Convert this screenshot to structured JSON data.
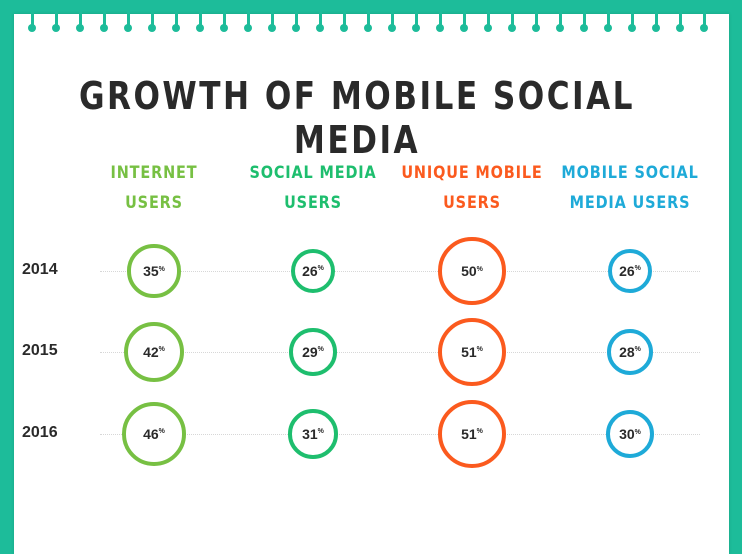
{
  "title": "GROWTH OF MOBILE SOCIAL MEDIA",
  "chart_data": {
    "type": "table",
    "title": "GROWTH OF MOBILE SOCIAL MEDIA",
    "rows": [
      "2014",
      "2015",
      "2016"
    ],
    "unit": "%",
    "series": [
      {
        "name_lines": [
          "INTERNET",
          "USERS"
        ],
        "color": "#77c043",
        "values": [
          35,
          42,
          46
        ]
      },
      {
        "name_lines": [
          "SOCIAL MEDIA",
          "USERS"
        ],
        "color": "#1ebe6e",
        "values": [
          26,
          29,
          31
        ]
      },
      {
        "name_lines": [
          "UNIQUE MOBILE",
          "USERS"
        ],
        "color": "#fb5a1e",
        "values": [
          50,
          51,
          51
        ]
      },
      {
        "name_lines": [
          "MOBILE SOCIAL",
          "MEDIA USERS"
        ],
        "color": "#1eaad8",
        "values": [
          26,
          28,
          30
        ]
      }
    ]
  }
}
